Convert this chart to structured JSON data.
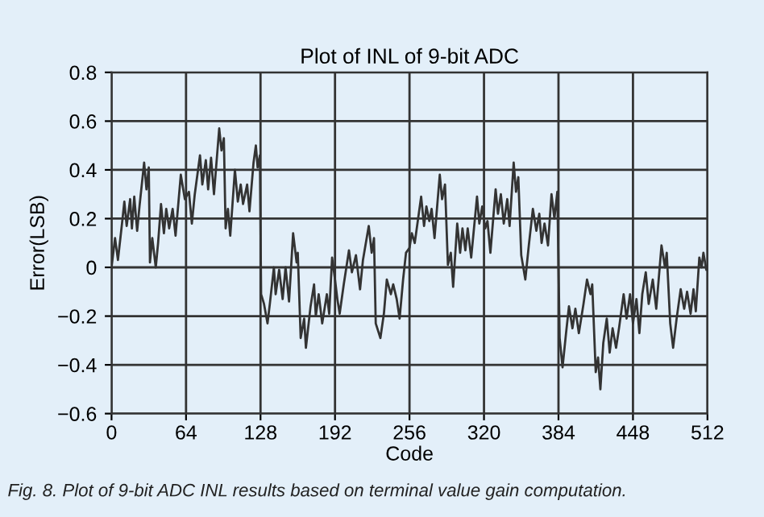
{
  "chart_data": {
    "type": "line",
    "title": "Plot of INL of 9-bit ADC",
    "xlabel": "Code",
    "ylabel": "Error(LSB)",
    "annotations": [
      "Fig. 8. Plot of 9-bit ADC INL results based on terminal value gain computation."
    ],
    "xlim": [
      0,
      512
    ],
    "ylim": [
      -0.6,
      0.8
    ],
    "xticks": [
      0,
      64,
      128,
      192,
      256,
      320,
      384,
      448,
      512
    ],
    "yticks": [
      -0.6,
      -0.4,
      -0.2,
      0,
      0.2,
      0.4,
      0.6,
      0.8
    ],
    "grid": true,
    "legend": false,
    "marker": "none",
    "line_style": "solid",
    "series": [
      {
        "color": "#333333",
        "x": [
          0,
          3,
          5.5,
          9,
          11,
          13,
          16,
          17.5,
          19.5,
          22,
          24,
          28,
          30,
          32,
          33,
          35,
          38,
          40,
          42.5,
          45,
          47,
          49.5,
          52.5,
          55,
          59.5,
          63,
          66.5,
          69,
          71.5,
          76,
          78,
          81,
          83,
          85.5,
          88,
          92.5,
          94.5,
          96.5,
          98,
          100,
          102,
          106,
          108.5,
          111,
          113,
          116.5,
          118.5,
          122,
          124,
          125.5,
          127.5,
          128.5,
          131,
          134,
          136,
          139.5,
          141,
          144,
          147,
          149.5,
          152.5,
          156,
          159,
          160,
          162.5,
          165.5,
          167,
          171,
          174,
          175.5,
          178,
          181,
          185,
          187,
          189.5,
          192,
          194,
          196,
          199.5,
          204,
          206.5,
          210,
          213.5,
          216,
          221,
          223.5,
          225.5,
          227,
          231,
          234,
          236.5,
          240,
          242,
          245,
          247.5,
          250.5,
          253,
          256,
          258,
          260.5,
          266,
          268.5,
          270.5,
          273,
          275,
          277.5,
          282,
          284,
          286.5,
          289,
          291.5,
          293.5,
          297,
          299.5,
          301.5,
          304,
          306,
          309,
          314,
          316,
          318.5,
          321,
          323,
          325.5,
          330,
          332,
          334.5,
          337,
          340,
          342,
          345.5,
          347.5,
          349.5,
          352,
          355.5,
          358.5,
          362,
          365,
          367.5,
          369.5,
          372,
          375,
          378,
          380.5,
          383,
          385,
          387.5,
          390.5,
          393,
          396,
          398.5,
          401.5,
          405.5,
          408.5,
          411.5,
          413,
          416,
          418,
          420,
          422.5,
          425.5,
          428,
          430.5,
          433.5,
          436,
          440,
          442.5,
          445.5,
          448,
          451,
          453.5,
          456,
          459,
          461.5,
          465,
          468,
          472.5,
          475.5,
          477,
          480,
          482.5,
          485.5,
          489,
          492,
          494.5,
          497.5,
          500,
          502,
          505,
          507,
          508.5,
          511
        ],
        "values": [
          0,
          0.12,
          0.03,
          0.18,
          0.27,
          0.17,
          0.28,
          0.16,
          0.29,
          0.15,
          0.25,
          0.43,
          0.32,
          0.41,
          0.02,
          0.12,
          0.0,
          0.1,
          0.26,
          0.14,
          0.24,
          0.16,
          0.24,
          0.13,
          0.38,
          0.28,
          0.31,
          0.18,
          0.3,
          0.46,
          0.34,
          0.44,
          0.32,
          0.45,
          0.3,
          0.57,
          0.48,
          0.53,
          0.16,
          0.24,
          0.13,
          0.4,
          0.27,
          0.34,
          0.26,
          0.34,
          0.23,
          0.43,
          0.5,
          0.41,
          0.46,
          -0.11,
          -0.15,
          -0.23,
          -0.15,
          0.0,
          -0.11,
          -0.01,
          -0.13,
          0.0,
          -0.14,
          0.14,
          0.02,
          0.06,
          -0.29,
          -0.21,
          -0.33,
          -0.16,
          -0.07,
          -0.2,
          -0.11,
          -0.23,
          -0.11,
          -0.19,
          0.04,
          -0.05,
          -0.13,
          -0.19,
          -0.07,
          0.07,
          -0.02,
          0.05,
          -0.09,
          0.03,
          0.17,
          0.06,
          0.12,
          -0.23,
          -0.29,
          -0.19,
          -0.05,
          -0.11,
          -0.07,
          -0.13,
          -0.21,
          -0.05,
          0.06,
          0.08,
          0.14,
          0.1,
          0.29,
          0.17,
          0.25,
          0.19,
          0.24,
          0.12,
          0.38,
          0.28,
          0.34,
          0.01,
          0.06,
          -0.08,
          0.18,
          0.06,
          0.16,
          0.07,
          0.16,
          0.04,
          0.29,
          0.18,
          0.25,
          0.16,
          0.19,
          0.06,
          0.32,
          0.22,
          0.3,
          0.18,
          0.28,
          0.17,
          0.43,
          0.31,
          0.37,
          0.05,
          -0.05,
          0.09,
          0.24,
          0.15,
          0.22,
          0.1,
          0.18,
          0.09,
          0.3,
          0.2,
          0.31,
          -0.29,
          -0.41,
          -0.27,
          -0.16,
          -0.25,
          -0.17,
          -0.27,
          -0.15,
          -0.05,
          -0.11,
          -0.07,
          -0.43,
          -0.37,
          -0.5,
          -0.31,
          -0.21,
          -0.35,
          -0.25,
          -0.33,
          -0.25,
          -0.11,
          -0.21,
          -0.11,
          -0.23,
          -0.13,
          -0.27,
          -0.11,
          -0.02,
          -0.15,
          -0.05,
          -0.17,
          0.09,
          0.0,
          0.06,
          -0.23,
          -0.33,
          -0.21,
          -0.09,
          -0.17,
          -0.1,
          -0.19,
          -0.09,
          -0.18,
          0.04,
          0.0,
          0.06,
          -0.01
        ]
      }
    ]
  }
}
